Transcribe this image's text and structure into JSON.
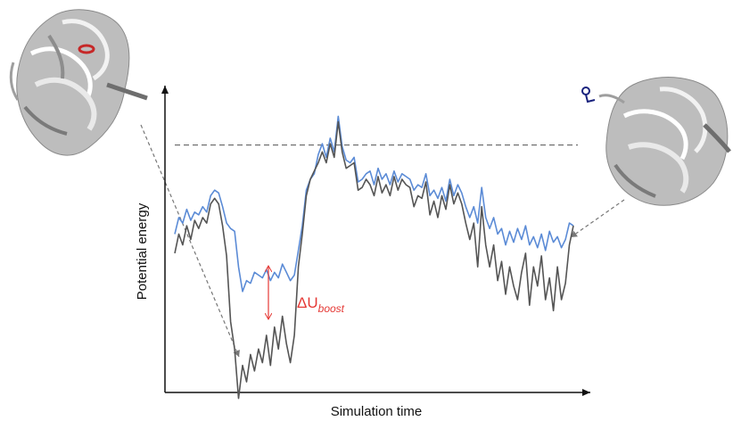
{
  "chart_data": {
    "type": "line",
    "title": "",
    "xlabel": "Simulation time",
    "ylabel": "Potential energy",
    "xlim": [
      0,
      100
    ],
    "ylim": [
      0,
      100
    ],
    "grid": false,
    "reference_line": {
      "style": "dashed",
      "value": 84.5,
      "color": "#666666"
    },
    "series": [
      {
        "color": "#5b8bd6",
        "x": [
          0,
          1,
          2,
          3,
          4,
          5,
          6,
          7,
          8,
          9,
          10,
          11,
          12,
          13,
          14,
          15,
          16,
          17,
          18,
          19,
          20,
          21,
          22,
          23,
          24,
          25,
          26,
          27,
          28,
          29,
          30,
          31,
          32,
          33,
          34,
          35,
          36,
          37,
          38,
          39,
          40,
          41,
          42,
          43,
          44,
          45,
          46,
          47,
          48,
          49,
          50,
          51,
          52,
          53,
          54,
          55,
          56,
          57,
          58,
          59,
          60,
          61,
          62,
          63,
          64,
          65,
          66,
          67,
          68,
          69,
          70,
          71,
          72,
          73,
          74,
          75,
          76,
          77,
          78,
          79,
          80,
          81,
          82,
          83,
          84,
          85,
          86,
          87,
          88,
          89,
          90,
          91,
          92,
          93,
          94,
          95,
          96,
          97,
          98,
          99,
          100
        ],
        "values": [
          52,
          58,
          56,
          61,
          57,
          60,
          59,
          62,
          60,
          66,
          68,
          67,
          62,
          56,
          54,
          53,
          40,
          31,
          35,
          34,
          38,
          37,
          36,
          39,
          35,
          38,
          36,
          41,
          38,
          35,
          37,
          46,
          55,
          68,
          72,
          74,
          81,
          85,
          80,
          87,
          82,
          95,
          84,
          79,
          78,
          80,
          71,
          72,
          74,
          75,
          70,
          76,
          72,
          74,
          70,
          75,
          71,
          74,
          73,
          72,
          68,
          70,
          69,
          74,
          66,
          68,
          65,
          69,
          64,
          72,
          66,
          70,
          67,
          62,
          58,
          62,
          56,
          69,
          58,
          54,
          58,
          52,
          54,
          48,
          53,
          49,
          54,
          50,
          55,
          48,
          51,
          47,
          52,
          46,
          53,
          49,
          51,
          47,
          50,
          56,
          55
        ]
      },
      {
        "color": "#555555",
        "x": [
          0,
          1,
          2,
          3,
          4,
          5,
          6,
          7,
          8,
          9,
          10,
          11,
          12,
          13,
          14,
          15,
          16,
          17,
          18,
          19,
          20,
          21,
          22,
          23,
          24,
          25,
          26,
          27,
          28,
          29,
          30,
          31,
          32,
          33,
          34,
          35,
          36,
          37,
          38,
          39,
          40,
          41,
          42,
          43,
          44,
          45,
          46,
          47,
          48,
          49,
          50,
          51,
          52,
          53,
          54,
          55,
          56,
          57,
          58,
          59,
          60,
          61,
          62,
          63,
          64,
          65,
          66,
          67,
          68,
          69,
          70,
          71,
          72,
          73,
          74,
          75,
          76,
          77,
          78,
          79,
          80,
          81,
          82,
          83,
          84,
          85,
          86,
          87,
          88,
          89,
          90,
          91,
          92,
          93,
          94,
          95,
          96,
          97,
          98,
          99,
          100
        ],
        "values": [
          45,
          52,
          48,
          55,
          50,
          57,
          54,
          58,
          56,
          63,
          65,
          63,
          55,
          44,
          20,
          10,
          -8,
          4,
          -2,
          8,
          2,
          10,
          5,
          15,
          4,
          18,
          10,
          22,
          12,
          5,
          15,
          40,
          52,
          66,
          72,
          75,
          78,
          82,
          78,
          85,
          80,
          93,
          82,
          76,
          77,
          78,
          68,
          69,
          72,
          70,
          66,
          73,
          67,
          70,
          66,
          73,
          68,
          72,
          70,
          69,
          62,
          66,
          65,
          71,
          59,
          64,
          58,
          66,
          61,
          70,
          63,
          67,
          63,
          56,
          50,
          56,
          40,
          62,
          48,
          40,
          48,
          35,
          42,
          30,
          40,
          33,
          28,
          38,
          45,
          26,
          40,
          33,
          44,
          28,
          36,
          24,
          40,
          28,
          34,
          48,
          55
        ]
      }
    ],
    "annotations": [
      {
        "type": "arrow",
        "color": "#e53935",
        "symbol": "ΔU",
        "subscript": "boost"
      }
    ]
  },
  "structures": [
    {
      "name": "protein-structure-left",
      "ligand_color": "#c62828"
    },
    {
      "name": "protein-structure-right",
      "ligand_color": "#1a237e"
    }
  ]
}
